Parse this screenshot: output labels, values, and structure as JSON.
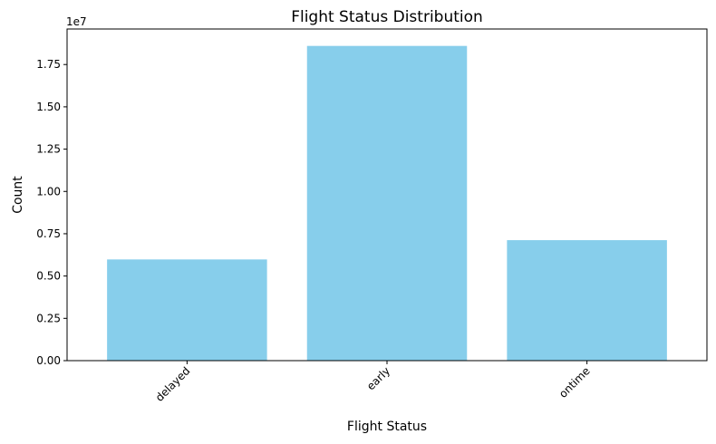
{
  "chart_data": {
    "type": "bar",
    "title": "Flight Status Distribution",
    "xlabel": "Flight Status",
    "ylabel": "Count",
    "categories": [
      "delayed",
      "early",
      "ontime"
    ],
    "values": [
      5980000,
      18600000,
      7120000
    ],
    "ylim": [
      0,
      19600000
    ],
    "yticks": [
      0,
      2500000,
      5000000,
      7500000,
      10000000,
      12500000,
      15000000,
      17500000
    ],
    "ytick_labels": [
      "0.00",
      "0.25",
      "0.50",
      "0.75",
      "1.00",
      "1.25",
      "1.50",
      "1.75"
    ],
    "y_offset_text": "1e7",
    "xtick_rotation": "45 degrees",
    "grid": false,
    "legend": "none",
    "bar_color": "#87ceeb"
  }
}
